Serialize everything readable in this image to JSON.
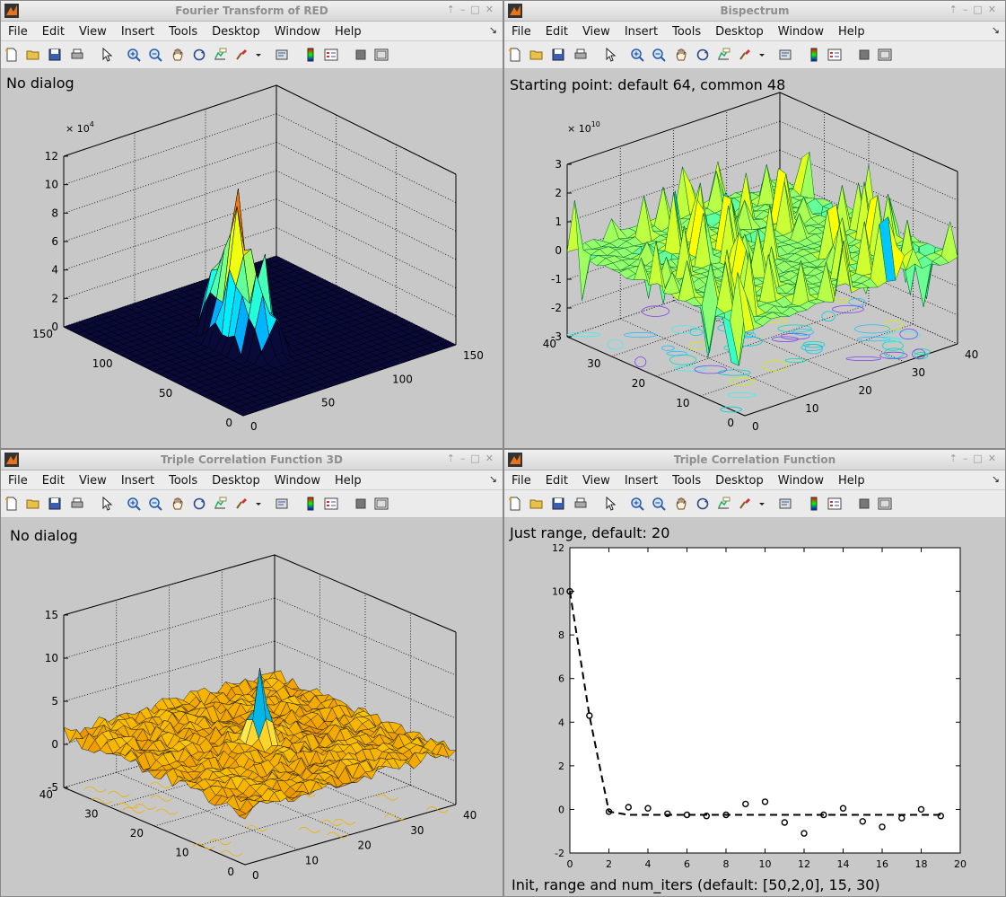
{
  "menu": [
    "File",
    "Edit",
    "View",
    "Insert",
    "Tools",
    "Desktop",
    "Window",
    "Help"
  ],
  "toolbar_icons": [
    "new-file-icon",
    "open-folder-icon",
    "save-icon",
    "print-icon",
    "pointer-icon",
    "zoom-in-icon",
    "zoom-out-icon",
    "pan-icon",
    "rotate-icon",
    "data-cursor-icon",
    "brush-icon",
    "link-icon",
    "colorbar-icon",
    "legend-icon",
    "hide-plot-tools-icon",
    "show-plot-tools-icon"
  ],
  "windows": {
    "w1": {
      "title": "Fourier Transform of RED",
      "dialog_text": "No dialog",
      "exponent": "× 10",
      "exponent_power": "4",
      "z_ticks": [
        "0",
        "2",
        "4",
        "6",
        "8",
        "10",
        "12"
      ],
      "left_ticks": [
        "0",
        "50",
        "100",
        "150"
      ],
      "right_ticks": [
        "0",
        "50",
        "100",
        "150"
      ]
    },
    "w2": {
      "title": "Bispectrum",
      "dialog_text": "Starting point: default 64, common 48",
      "exponent": "× 10",
      "exponent_power": "10",
      "z_ticks": [
        "-3",
        "-2",
        "-1",
        "0",
        "1",
        "2",
        "3"
      ],
      "left_ticks": [
        "0",
        "10",
        "20",
        "30",
        "40"
      ],
      "right_ticks": [
        "0",
        "10",
        "20",
        "30",
        "40"
      ]
    },
    "w3": {
      "title": "Triple Correlation Function 3D",
      "dialog_text": "No dialog",
      "z_ticks": [
        "-5",
        "0",
        "5",
        "10",
        "15"
      ],
      "left_ticks": [
        "0",
        "10",
        "20",
        "30",
        "40"
      ],
      "right_ticks": [
        "0",
        "10",
        "20",
        "30",
        "40"
      ]
    },
    "w4": {
      "title": "Triple Correlation Function",
      "dialog_text": "Just range, default: 20",
      "bottom_text": "Init, range and num_iters (default: [50,2,0], 15, 30)"
    }
  },
  "chart_data": {
    "type": "line",
    "xlim": [
      0,
      20
    ],
    "ylim": [
      -2,
      12
    ],
    "x_ticks": [
      "0",
      "2",
      "4",
      "6",
      "8",
      "10",
      "12",
      "14",
      "16",
      "18",
      "20"
    ],
    "y_ticks": [
      "-2",
      "0",
      "2",
      "4",
      "6",
      "8",
      "10",
      "12"
    ],
    "series": [
      {
        "style": "markers",
        "x": [
          0,
          1,
          2,
          3,
          4,
          5,
          6,
          7,
          8,
          9,
          10,
          11,
          12,
          13,
          14,
          15,
          16,
          17,
          18,
          19
        ],
        "y": [
          10,
          4.3,
          -0.1,
          0.1,
          0.05,
          -0.2,
          -0.25,
          -0.3,
          -0.25,
          0.25,
          0.35,
          -0.6,
          -1.1,
          -0.25,
          0.05,
          -0.55,
          -0.8,
          -0.4,
          0.0,
          -0.3
        ]
      },
      {
        "style": "dashed",
        "x": [
          0,
          1,
          2,
          3,
          4,
          5,
          6,
          7,
          8,
          9,
          10,
          11,
          12,
          13,
          14,
          15,
          16,
          17,
          18,
          19
        ],
        "y": [
          10,
          4.3,
          -0.1,
          -0.25,
          -0.25,
          -0.25,
          -0.25,
          -0.25,
          -0.25,
          -0.25,
          -0.25,
          -0.25,
          -0.25,
          -0.25,
          -0.25,
          -0.25,
          -0.25,
          -0.25,
          -0.25,
          -0.25
        ]
      }
    ]
  }
}
